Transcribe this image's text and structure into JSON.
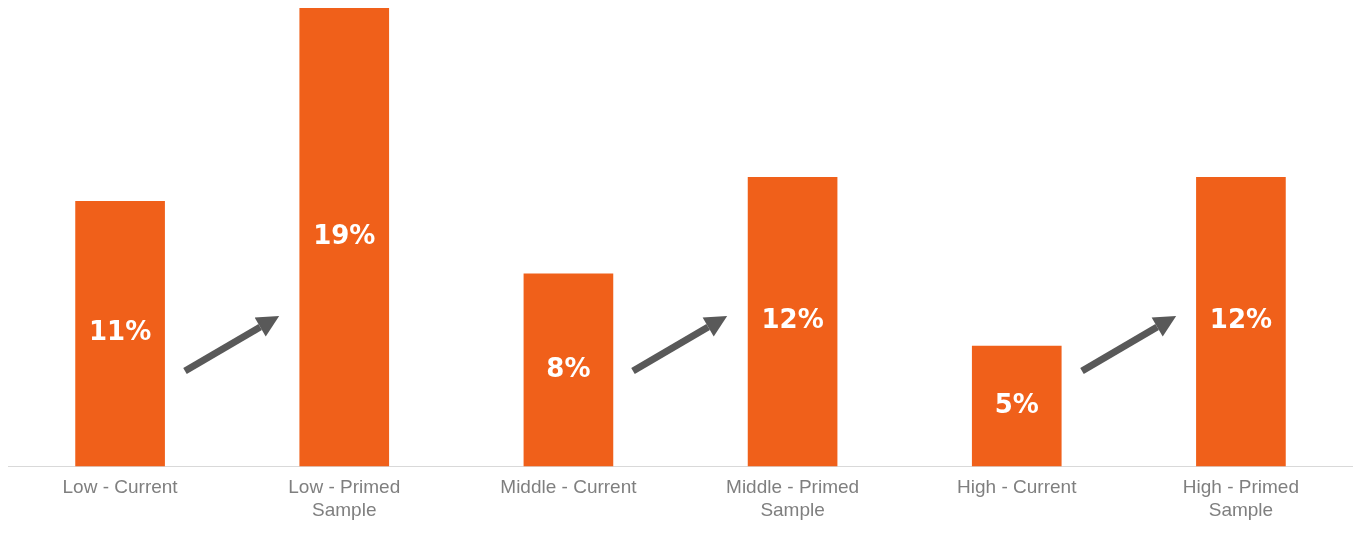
{
  "chart_data": {
    "type": "bar",
    "categories": [
      "Low - Current",
      "Low - Primed Sample",
      "Middle - Current",
      "Middle - Primed Sample",
      "High - Current",
      "High - Primed Sample"
    ],
    "values": [
      11,
      19,
      8,
      12,
      5,
      12
    ],
    "color": "#f0601a",
    "value_labels": [
      "11%",
      "19%",
      "8%",
      "12%",
      "5%",
      "12%"
    ],
    "grid": false,
    "legend": false
  }
}
